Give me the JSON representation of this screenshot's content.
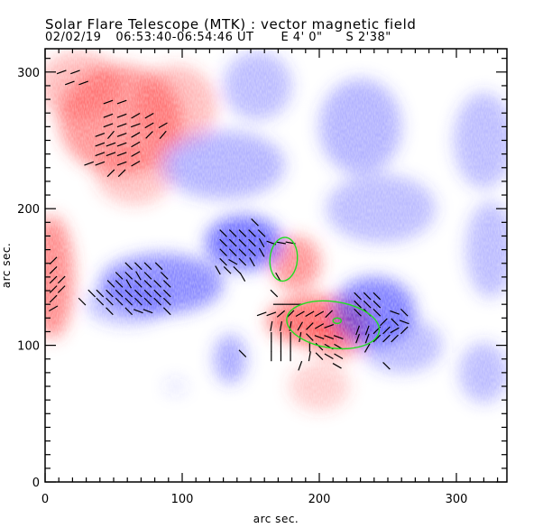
{
  "header": {
    "title": "Solar Flare Telescope (MTK) : vector magnetic field",
    "date": "02/02/19",
    "time_range": "06:53:40-06:54:46 UT",
    "pos_ew": "E 4' 0\"",
    "pos_ns": "S 2'38\""
  },
  "colors": {
    "positive": "#ff3c3c",
    "negative": "#3c3cff",
    "contour": "#22dd22",
    "vector": "#000000"
  },
  "chart_data": {
    "type": "heatmap",
    "title": "Solar Flare Telescope (MTK) : vector magnetic field",
    "xlabel": "arc sec.",
    "ylabel": "arc sec.",
    "xlim": [
      0,
      338
    ],
    "ylim": [
      0,
      317
    ],
    "xticks": [
      0,
      100,
      200,
      300
    ],
    "yticks": [
      0,
      100,
      200,
      300
    ],
    "xtick_labels": [
      "0",
      "100",
      "200",
      "300"
    ],
    "ytick_labels": [
      "0",
      "100",
      "200",
      "300"
    ],
    "minor_tick_step": 10,
    "polarity_regions": [
      {
        "polarity": "positive",
        "x": 55,
        "y": 265,
        "rx": 45,
        "ry": 40,
        "strength": 0.55
      },
      {
        "polarity": "positive",
        "x": 25,
        "y": 290,
        "rx": 30,
        "ry": 25,
        "strength": 0.35
      },
      {
        "polarity": "positive",
        "x": 95,
        "y": 275,
        "rx": 30,
        "ry": 30,
        "strength": 0.35
      },
      {
        "polarity": "positive",
        "x": 65,
        "y": 225,
        "rx": 28,
        "ry": 22,
        "strength": 0.3
      },
      {
        "polarity": "positive",
        "x": 5,
        "y": 150,
        "rx": 16,
        "ry": 45,
        "strength": 0.6
      },
      {
        "polarity": "positive",
        "x": 183,
        "y": 160,
        "rx": 18,
        "ry": 20,
        "strength": 0.55
      },
      {
        "polarity": "positive",
        "x": 200,
        "y": 118,
        "rx": 38,
        "ry": 18,
        "strength": 0.75
      },
      {
        "polarity": "positive",
        "x": 215,
        "y": 105,
        "rx": 20,
        "ry": 14,
        "strength": 0.5
      },
      {
        "polarity": "positive",
        "x": 200,
        "y": 70,
        "rx": 22,
        "ry": 18,
        "strength": 0.25
      },
      {
        "polarity": "negative",
        "x": 145,
        "y": 175,
        "rx": 28,
        "ry": 20,
        "strength": 0.75
      },
      {
        "polarity": "negative",
        "x": 85,
        "y": 145,
        "rx": 45,
        "ry": 22,
        "strength": 0.6
      },
      {
        "polarity": "negative",
        "x": 60,
        "y": 130,
        "rx": 30,
        "ry": 15,
        "strength": 0.35
      },
      {
        "polarity": "negative",
        "x": 130,
        "y": 232,
        "rx": 45,
        "ry": 25,
        "strength": 0.4
      },
      {
        "polarity": "negative",
        "x": 155,
        "y": 290,
        "rx": 25,
        "ry": 25,
        "strength": 0.35
      },
      {
        "polarity": "negative",
        "x": 230,
        "y": 260,
        "rx": 30,
        "ry": 35,
        "strength": 0.4
      },
      {
        "polarity": "negative",
        "x": 245,
        "y": 200,
        "rx": 40,
        "ry": 25,
        "strength": 0.35
      },
      {
        "polarity": "negative",
        "x": 240,
        "y": 125,
        "rx": 30,
        "ry": 25,
        "strength": 0.65
      },
      {
        "polarity": "negative",
        "x": 260,
        "y": 100,
        "rx": 30,
        "ry": 20,
        "strength": 0.35
      },
      {
        "polarity": "negative",
        "x": 135,
        "y": 90,
        "rx": 12,
        "ry": 18,
        "strength": 0.45
      },
      {
        "polarity": "negative",
        "x": 320,
        "y": 250,
        "rx": 22,
        "ry": 35,
        "strength": 0.35
      },
      {
        "polarity": "negative",
        "x": 325,
        "y": 170,
        "rx": 18,
        "ry": 35,
        "strength": 0.35
      },
      {
        "polarity": "negative",
        "x": 320,
        "y": 80,
        "rx": 18,
        "ry": 22,
        "strength": 0.35
      },
      {
        "polarity": "negative",
        "x": 95,
        "y": 70,
        "rx": 8,
        "ry": 6,
        "strength": 0.15
      }
    ],
    "vectors": [
      {
        "x": 12,
        "y": 300,
        "angle": 20
      },
      {
        "x": 22,
        "y": 300,
        "angle": 20
      },
      {
        "x": 18,
        "y": 292,
        "angle": 20
      },
      {
        "x": 28,
        "y": 292,
        "angle": 20
      },
      {
        "x": 46,
        "y": 278,
        "angle": 20
      },
      {
        "x": 56,
        "y": 278,
        "angle": 20
      },
      {
        "x": 46,
        "y": 268,
        "angle": 20
      },
      {
        "x": 56,
        "y": 268,
        "angle": 20
      },
      {
        "x": 66,
        "y": 268,
        "angle": 30
      },
      {
        "x": 76,
        "y": 268,
        "angle": 30
      },
      {
        "x": 46,
        "y": 261,
        "angle": 20
      },
      {
        "x": 56,
        "y": 261,
        "angle": 20
      },
      {
        "x": 66,
        "y": 261,
        "angle": 20
      },
      {
        "x": 76,
        "y": 261,
        "angle": 30
      },
      {
        "x": 86,
        "y": 261,
        "angle": 30
      },
      {
        "x": 40,
        "y": 254,
        "angle": 20
      },
      {
        "x": 48,
        "y": 254,
        "angle": 50
      },
      {
        "x": 56,
        "y": 254,
        "angle": 20
      },
      {
        "x": 66,
        "y": 254,
        "angle": 30
      },
      {
        "x": 76,
        "y": 254,
        "angle": 45
      },
      {
        "x": 86,
        "y": 254,
        "angle": 50
      },
      {
        "x": 40,
        "y": 247,
        "angle": 20
      },
      {
        "x": 48,
        "y": 247,
        "angle": 20
      },
      {
        "x": 56,
        "y": 247,
        "angle": 20
      },
      {
        "x": 66,
        "y": 247,
        "angle": 30
      },
      {
        "x": 40,
        "y": 240,
        "angle": 20
      },
      {
        "x": 48,
        "y": 240,
        "angle": 20
      },
      {
        "x": 56,
        "y": 240,
        "angle": 20
      },
      {
        "x": 66,
        "y": 240,
        "angle": 30
      },
      {
        "x": 32,
        "y": 233,
        "angle": 20
      },
      {
        "x": 40,
        "y": 233,
        "angle": 20
      },
      {
        "x": 56,
        "y": 233,
        "angle": 20
      },
      {
        "x": 66,
        "y": 233,
        "angle": 30
      },
      {
        "x": 48,
        "y": 226,
        "angle": 45
      },
      {
        "x": 56,
        "y": 226,
        "angle": 45
      },
      {
        "x": 6,
        "y": 162,
        "angle": 45
      },
      {
        "x": 6,
        "y": 155,
        "angle": 45
      },
      {
        "x": 6,
        "y": 148,
        "angle": 45
      },
      {
        "x": 12,
        "y": 148,
        "angle": 45
      },
      {
        "x": 6,
        "y": 141,
        "angle": 45
      },
      {
        "x": 12,
        "y": 141,
        "angle": 45
      },
      {
        "x": 6,
        "y": 134,
        "angle": 45
      },
      {
        "x": 6,
        "y": 127,
        "angle": 30
      },
      {
        "x": 61,
        "y": 158,
        "angle": -45
      },
      {
        "x": 68,
        "y": 158,
        "angle": -45
      },
      {
        "x": 75,
        "y": 158,
        "angle": -45
      },
      {
        "x": 83,
        "y": 158,
        "angle": -45
      },
      {
        "x": 54,
        "y": 151,
        "angle": -45
      },
      {
        "x": 61,
        "y": 151,
        "angle": -45
      },
      {
        "x": 68,
        "y": 151,
        "angle": -60
      },
      {
        "x": 75,
        "y": 151,
        "angle": -45
      },
      {
        "x": 87,
        "y": 151,
        "angle": -45
      },
      {
        "x": 48,
        "y": 145,
        "angle": -45
      },
      {
        "x": 54,
        "y": 145,
        "angle": -45
      },
      {
        "x": 61,
        "y": 145,
        "angle": -60
      },
      {
        "x": 68,
        "y": 145,
        "angle": -45
      },
      {
        "x": 75,
        "y": 145,
        "angle": -45
      },
      {
        "x": 82,
        "y": 145,
        "angle": -45
      },
      {
        "x": 89,
        "y": 145,
        "angle": -45
      },
      {
        "x": 34,
        "y": 138,
        "angle": -45
      },
      {
        "x": 40,
        "y": 138,
        "angle": -45
      },
      {
        "x": 47,
        "y": 138,
        "angle": -45
      },
      {
        "x": 54,
        "y": 138,
        "angle": -45
      },
      {
        "x": 61,
        "y": 138,
        "angle": -45
      },
      {
        "x": 68,
        "y": 138,
        "angle": -45
      },
      {
        "x": 75,
        "y": 138,
        "angle": -45
      },
      {
        "x": 82,
        "y": 138,
        "angle": -45
      },
      {
        "x": 89,
        "y": 138,
        "angle": -45
      },
      {
        "x": 27,
        "y": 132,
        "angle": -45
      },
      {
        "x": 40,
        "y": 132,
        "angle": -45
      },
      {
        "x": 47,
        "y": 132,
        "angle": -45
      },
      {
        "x": 54,
        "y": 132,
        "angle": -45
      },
      {
        "x": 61,
        "y": 132,
        "angle": -45
      },
      {
        "x": 68,
        "y": 132,
        "angle": -45
      },
      {
        "x": 75,
        "y": 132,
        "angle": -45
      },
      {
        "x": 82,
        "y": 132,
        "angle": -45
      },
      {
        "x": 89,
        "y": 132,
        "angle": -45
      },
      {
        "x": 47,
        "y": 125,
        "angle": -45
      },
      {
        "x": 61,
        "y": 125,
        "angle": -45
      },
      {
        "x": 68,
        "y": 125,
        "angle": -20
      },
      {
        "x": 75,
        "y": 125,
        "angle": -20
      },
      {
        "x": 89,
        "y": 125,
        "angle": -45
      },
      {
        "x": 153,
        "y": 190,
        "angle": -45
      },
      {
        "x": 130,
        "y": 182,
        "angle": -45
      },
      {
        "x": 137,
        "y": 182,
        "angle": -45
      },
      {
        "x": 144,
        "y": 182,
        "angle": -45
      },
      {
        "x": 151,
        "y": 182,
        "angle": -45
      },
      {
        "x": 158,
        "y": 182,
        "angle": -45
      },
      {
        "x": 130,
        "y": 175,
        "angle": -45
      },
      {
        "x": 137,
        "y": 175,
        "angle": -45
      },
      {
        "x": 144,
        "y": 175,
        "angle": -45
      },
      {
        "x": 151,
        "y": 175,
        "angle": -45
      },
      {
        "x": 158,
        "y": 175,
        "angle": -60
      },
      {
        "x": 165,
        "y": 175,
        "angle": -20
      },
      {
        "x": 172,
        "y": 175,
        "angle": -10
      },
      {
        "x": 179,
        "y": 175,
        "angle": -10
      },
      {
        "x": 130,
        "y": 168,
        "angle": -45
      },
      {
        "x": 137,
        "y": 168,
        "angle": -45
      },
      {
        "x": 144,
        "y": 168,
        "angle": -45
      },
      {
        "x": 151,
        "y": 168,
        "angle": -45
      },
      {
        "x": 158,
        "y": 168,
        "angle": -60
      },
      {
        "x": 130,
        "y": 161,
        "angle": -45
      },
      {
        "x": 137,
        "y": 161,
        "angle": -30
      },
      {
        "x": 144,
        "y": 161,
        "angle": -45
      },
      {
        "x": 151,
        "y": 161,
        "angle": -60
      },
      {
        "x": 126,
        "y": 155,
        "angle": -60
      },
      {
        "x": 133,
        "y": 155,
        "angle": -45
      },
      {
        "x": 140,
        "y": 155,
        "angle": -45
      },
      {
        "x": 144,
        "y": 150,
        "angle": -60
      },
      {
        "x": 170,
        "y": 150,
        "angle": -60
      },
      {
        "x": 167,
        "y": 138,
        "angle": -45
      },
      {
        "x": 170,
        "y": 130,
        "angle": 0
      },
      {
        "x": 177,
        "y": 130,
        "angle": 0
      },
      {
        "x": 184,
        "y": 130,
        "angle": 0
      },
      {
        "x": 158,
        "y": 123,
        "angle": 20
      },
      {
        "x": 165,
        "y": 123,
        "angle": 20
      },
      {
        "x": 172,
        "y": 123,
        "angle": 40
      },
      {
        "x": 179,
        "y": 123,
        "angle": 45
      },
      {
        "x": 186,
        "y": 123,
        "angle": 30
      },
      {
        "x": 193,
        "y": 123,
        "angle": 30
      },
      {
        "x": 200,
        "y": 123,
        "angle": 30
      },
      {
        "x": 207,
        "y": 123,
        "angle": 45
      },
      {
        "x": 165,
        "y": 114,
        "angle": 80
      },
      {
        "x": 172,
        "y": 114,
        "angle": 80
      },
      {
        "x": 179,
        "y": 114,
        "angle": 80
      },
      {
        "x": 186,
        "y": 114,
        "angle": 60
      },
      {
        "x": 193,
        "y": 114,
        "angle": 45
      },
      {
        "x": 200,
        "y": 114,
        "angle": 30
      },
      {
        "x": 207,
        "y": 114,
        "angle": 20
      },
      {
        "x": 165,
        "y": 106,
        "angle": 90
      },
      {
        "x": 172,
        "y": 106,
        "angle": 90
      },
      {
        "x": 179,
        "y": 106,
        "angle": 90
      },
      {
        "x": 186,
        "y": 106,
        "angle": 80
      },
      {
        "x": 193,
        "y": 106,
        "angle": -45
      },
      {
        "x": 200,
        "y": 106,
        "angle": -20
      },
      {
        "x": 207,
        "y": 106,
        "angle": -20
      },
      {
        "x": 214,
        "y": 106,
        "angle": -20
      },
      {
        "x": 165,
        "y": 99,
        "angle": 90
      },
      {
        "x": 172,
        "y": 99,
        "angle": 90
      },
      {
        "x": 179,
        "y": 99,
        "angle": 90
      },
      {
        "x": 193,
        "y": 99,
        "angle": 90
      },
      {
        "x": 200,
        "y": 99,
        "angle": -45
      },
      {
        "x": 207,
        "y": 99,
        "angle": -30
      },
      {
        "x": 214,
        "y": 99,
        "angle": -30
      },
      {
        "x": 165,
        "y": 92,
        "angle": 90
      },
      {
        "x": 172,
        "y": 92,
        "angle": 90
      },
      {
        "x": 179,
        "y": 92,
        "angle": 90
      },
      {
        "x": 193,
        "y": 92,
        "angle": 80
      },
      {
        "x": 200,
        "y": 92,
        "angle": -45
      },
      {
        "x": 207,
        "y": 92,
        "angle": -30
      },
      {
        "x": 214,
        "y": 92,
        "angle": -30
      },
      {
        "x": 186,
        "y": 85,
        "angle": 70
      },
      {
        "x": 213,
        "y": 85,
        "angle": -30
      },
      {
        "x": 144,
        "y": 94,
        "angle": -45
      },
      {
        "x": 228,
        "y": 136,
        "angle": -45
      },
      {
        "x": 235,
        "y": 136,
        "angle": -45
      },
      {
        "x": 242,
        "y": 136,
        "angle": -45
      },
      {
        "x": 228,
        "y": 130,
        "angle": -45
      },
      {
        "x": 235,
        "y": 130,
        "angle": -45
      },
      {
        "x": 242,
        "y": 130,
        "angle": -45
      },
      {
        "x": 228,
        "y": 124,
        "angle": -45
      },
      {
        "x": 235,
        "y": 124,
        "angle": -45
      },
      {
        "x": 242,
        "y": 124,
        "angle": -45
      },
      {
        "x": 255,
        "y": 124,
        "angle": -20
      },
      {
        "x": 262,
        "y": 124,
        "angle": -45
      },
      {
        "x": 247,
        "y": 117,
        "angle": 45
      },
      {
        "x": 255,
        "y": 117,
        "angle": -45
      },
      {
        "x": 262,
        "y": 117,
        "angle": -20
      },
      {
        "x": 228,
        "y": 111,
        "angle": 70
      },
      {
        "x": 235,
        "y": 111,
        "angle": 70
      },
      {
        "x": 242,
        "y": 111,
        "angle": 45
      },
      {
        "x": 249,
        "y": 111,
        "angle": 45
      },
      {
        "x": 255,
        "y": 111,
        "angle": 30
      },
      {
        "x": 262,
        "y": 111,
        "angle": 45
      },
      {
        "x": 228,
        "y": 105,
        "angle": 70
      },
      {
        "x": 235,
        "y": 105,
        "angle": 70
      },
      {
        "x": 242,
        "y": 105,
        "angle": 45
      },
      {
        "x": 249,
        "y": 105,
        "angle": 45
      },
      {
        "x": 255,
        "y": 105,
        "angle": 45
      },
      {
        "x": 235,
        "y": 98,
        "angle": 60
      },
      {
        "x": 249,
        "y": 85,
        "angle": -45
      }
    ],
    "contours": [
      {
        "level": "flare-kernel-1",
        "cx": 174,
        "cy": 163,
        "rx": 10,
        "ry": 16,
        "rotation": 5
      },
      {
        "level": "flare-kernel-2",
        "cx": 210,
        "cy": 115,
        "rx": 34,
        "ry": 17,
        "rotation": 8
      },
      {
        "level": "flare-peak",
        "cx": 213,
        "cy": 118,
        "rx": 3,
        "ry": 2,
        "rotation": 0
      }
    ]
  }
}
